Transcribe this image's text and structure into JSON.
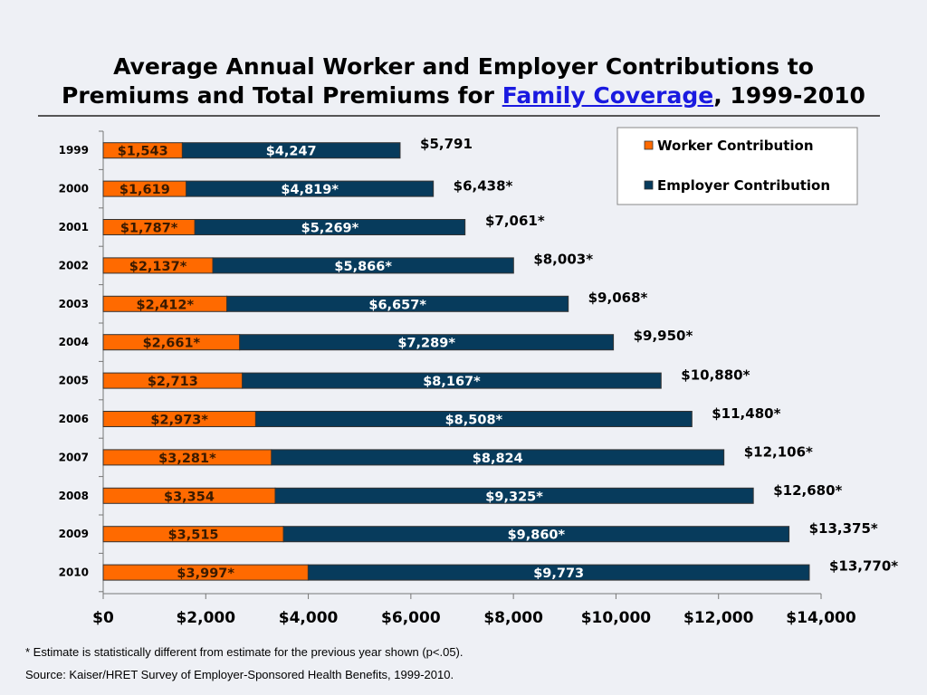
{
  "title": {
    "line1": "Average Annual Worker and Employer Contributions to",
    "line2_prefix": "Premiums and Total Premiums for ",
    "line2_link": "Family Coverage",
    "line2_suffix": ", 1999-2010"
  },
  "chart_data": {
    "type": "bar",
    "orientation": "horizontal",
    "stacked": true,
    "categories": [
      "1999",
      "2000",
      "2001",
      "2002",
      "2003",
      "2004",
      "2005",
      "2006",
      "2007",
      "2008",
      "2009",
      "2010"
    ],
    "series": [
      {
        "name": "Worker Contribution",
        "color": "#ff6a00",
        "values": [
          1543,
          1619,
          1787,
          2137,
          2412,
          2661,
          2713,
          2973,
          3281,
          3354,
          3515,
          3997
        ],
        "labels": [
          "$1,543",
          "$1,619",
          "$1,787*",
          "$2,137*",
          "$2,412*",
          "$2,661*",
          "$2,713",
          "$2,973*",
          "$3,281*",
          "$3,354",
          "$3,515",
          "$3,997*"
        ]
      },
      {
        "name": "Employer Contribution",
        "color": "#073b5c",
        "values": [
          4247,
          4819,
          5269,
          5866,
          6657,
          7289,
          8167,
          8508,
          8824,
          9325,
          9860,
          9773
        ],
        "labels": [
          "$4,247",
          "$4,819*",
          "$5,269*",
          "$5,866*",
          "$6,657*",
          "$7,289*",
          "$8,167*",
          "$8,508*",
          "$8,824",
          "$9,325*",
          "$9,860*",
          "$9,773"
        ]
      }
    ],
    "totals": [
      5791,
      6438,
      7061,
      8003,
      9068,
      9950,
      10880,
      11480,
      12106,
      12680,
      13375,
      13770
    ],
    "total_labels": [
      "$5,791",
      "$6,438*",
      "$7,061*",
      "$8,003*",
      "$9,068*",
      "$9,950*",
      "$10,880*",
      "$11,480*",
      "$12,106*",
      "$12,680*",
      "$13,375*",
      "$13,770*"
    ],
    "xlim": [
      0,
      14000
    ],
    "xticks": [
      0,
      2000,
      4000,
      6000,
      8000,
      10000,
      12000,
      14000
    ],
    "xtick_labels": [
      "$0",
      "$2,000",
      "$4,000",
      "$6,000",
      "$8,000",
      "$10,000",
      "$12,000",
      "$14,000"
    ],
    "grid": false,
    "legend_position": "top-right"
  },
  "footnote": "* Estimate is statistically different from estimate for the previous year shown (p<.05).",
  "source": "Source:  Kaiser/HRET Survey of Employer-Sponsored Health Benefits, 1999-2010."
}
